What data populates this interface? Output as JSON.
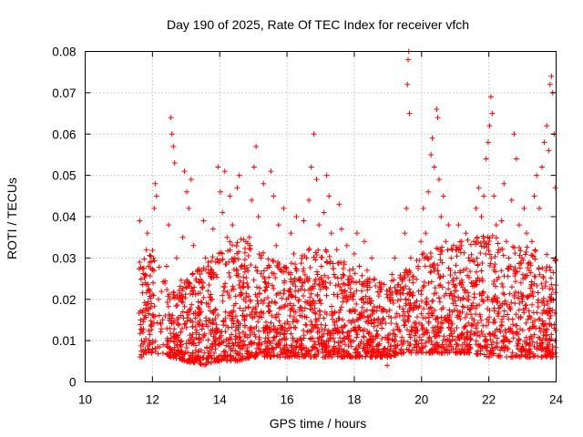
{
  "chart_data": {
    "type": "scatter",
    "title": "Day 190 of 2025, Rate Of TEC Index for receiver vfch",
    "xlabel": "GPS time / hours",
    "ylabel": "ROTI / TECUs",
    "xlim": [
      10,
      24
    ],
    "ylim": [
      0,
      0.08
    ],
    "xticks": [
      10,
      12,
      14,
      16,
      18,
      20,
      22,
      24
    ],
    "xtick_labels": [
      "10",
      "12",
      "14",
      "16",
      "18",
      "20",
      "22",
      "24"
    ],
    "yticks": [
      0,
      0.01,
      0.02,
      0.03,
      0.04,
      0.05,
      0.06,
      0.07,
      0.08
    ],
    "ytick_labels": [
      "0",
      "0.01",
      "0.02",
      "0.03",
      "0.04",
      "0.05",
      "0.06",
      "0.07",
      "0.08"
    ],
    "grid": true,
    "marker": "+",
    "color": "#ff0000",
    "series": [
      {
        "name": "ROTI",
        "points": [
          [
            11.62,
            0.039
          ],
          [
            11.65,
            0.015
          ],
          [
            11.68,
            0.01
          ],
          [
            11.72,
            0.012
          ],
          [
            11.78,
            0.026
          ],
          [
            11.82,
            0.032
          ],
          [
            11.85,
            0.036
          ],
          [
            11.88,
            0.028
          ],
          [
            11.92,
            0.022
          ],
          [
            11.95,
            0.018
          ],
          [
            11.98,
            0.014
          ],
          [
            12.02,
            0.024
          ],
          [
            12.05,
            0.042
          ],
          [
            12.08,
            0.048
          ],
          [
            12.12,
            0.045
          ],
          [
            12.18,
            0.02
          ],
          [
            12.25,
            0.014
          ],
          [
            12.32,
            0.009
          ],
          [
            12.38,
            0.016
          ],
          [
            12.42,
            0.028
          ],
          [
            12.48,
            0.038
          ],
          [
            12.55,
            0.064
          ],
          [
            12.58,
            0.06
          ],
          [
            12.62,
            0.057
          ],
          [
            12.66,
            0.053
          ],
          [
            12.72,
            0.03
          ],
          [
            12.78,
            0.02
          ],
          [
            12.84,
            0.012
          ],
          [
            12.9,
            0.035
          ],
          [
            12.95,
            0.051
          ],
          [
            13.02,
            0.046
          ],
          [
            13.08,
            0.042
          ],
          [
            13.15,
            0.049
          ],
          [
            13.22,
            0.033
          ],
          [
            13.3,
            0.025
          ],
          [
            13.38,
            0.018
          ],
          [
            13.45,
            0.01
          ],
          [
            13.52,
            0.039
          ],
          [
            13.58,
            0.03
          ],
          [
            13.65,
            0.022
          ],
          [
            13.72,
            0.015
          ],
          [
            13.8,
            0.037
          ],
          [
            13.88,
            0.029
          ],
          [
            13.95,
            0.052
          ],
          [
            14.02,
            0.046
          ],
          [
            14.08,
            0.041
          ],
          [
            14.15,
            0.051
          ],
          [
            14.22,
            0.035
          ],
          [
            14.3,
            0.045
          ],
          [
            14.38,
            0.038
          ],
          [
            14.45,
            0.03
          ],
          [
            14.52,
            0.047
          ],
          [
            14.58,
            0.05
          ],
          [
            14.65,
            0.028
          ],
          [
            14.72,
            0.02
          ],
          [
            14.8,
            0.016
          ],
          [
            14.88,
            0.035
          ],
          [
            14.95,
            0.044
          ],
          [
            15.02,
            0.052
          ],
          [
            15.08,
            0.057
          ],
          [
            15.15,
            0.04
          ],
          [
            15.22,
            0.03
          ],
          [
            15.3,
            0.048
          ],
          [
            15.38,
            0.023
          ],
          [
            15.45,
            0.017
          ],
          [
            15.52,
            0.051
          ],
          [
            15.6,
            0.045
          ],
          [
            15.68,
            0.033
          ],
          [
            15.75,
            0.038
          ],
          [
            15.82,
            0.027
          ],
          [
            15.9,
            0.042
          ],
          [
            15.98,
            0.02
          ],
          [
            16.05,
            0.014
          ],
          [
            16.12,
            0.036
          ],
          [
            16.2,
            0.031
          ],
          [
            16.28,
            0.04
          ],
          [
            16.35,
            0.025
          ],
          [
            16.42,
            0.018
          ],
          [
            16.5,
            0.039
          ],
          [
            16.58,
            0.03
          ],
          [
            16.65,
            0.044
          ],
          [
            16.72,
            0.052
          ],
          [
            16.8,
            0.06
          ],
          [
            16.88,
            0.049
          ],
          [
            16.95,
            0.038
          ],
          [
            17.02,
            0.028
          ],
          [
            17.1,
            0.041
          ],
          [
            17.18,
            0.05
          ],
          [
            17.25,
            0.045
          ],
          [
            17.32,
            0.036
          ],
          [
            17.4,
            0.026
          ],
          [
            17.48,
            0.032
          ],
          [
            17.55,
            0.043
          ],
          [
            17.62,
            0.037
          ],
          [
            17.7,
            0.029
          ],
          [
            17.78,
            0.033
          ],
          [
            17.85,
            0.024
          ],
          [
            17.92,
            0.017
          ],
          [
            18.0,
            0.031
          ],
          [
            18.08,
            0.036
          ],
          [
            18.15,
            0.028
          ],
          [
            18.22,
            0.022
          ],
          [
            18.3,
            0.034
          ],
          [
            18.38,
            0.027
          ],
          [
            18.45,
            0.02
          ],
          [
            18.52,
            0.03
          ],
          [
            18.6,
            0.025
          ],
          [
            18.68,
            0.018
          ],
          [
            18.75,
            0.024
          ],
          [
            18.82,
            0.013
          ],
          [
            18.9,
            0.008
          ],
          [
            18.98,
            0.004
          ],
          [
            19.05,
            0.02
          ],
          [
            19.12,
            0.026
          ],
          [
            19.2,
            0.03
          ],
          [
            19.28,
            0.022
          ],
          [
            19.35,
            0.016
          ],
          [
            19.42,
            0.025
          ],
          [
            19.5,
            0.036
          ],
          [
            19.55,
            0.042
          ],
          [
            19.58,
            0.072
          ],
          [
            19.6,
            0.078
          ],
          [
            19.62,
            0.08
          ],
          [
            19.64,
            0.065
          ],
          [
            19.68,
            0.03
          ],
          [
            19.75,
            0.024
          ],
          [
            19.82,
            0.018
          ],
          [
            19.9,
            0.028
          ],
          [
            19.98,
            0.034
          ],
          [
            20.05,
            0.042
          ],
          [
            20.12,
            0.036
          ],
          [
            20.2,
            0.046
          ],
          [
            20.28,
            0.055
          ],
          [
            20.32,
            0.059
          ],
          [
            20.38,
            0.052
          ],
          [
            20.45,
            0.066
          ],
          [
            20.48,
            0.064
          ],
          [
            20.52,
            0.049
          ],
          [
            20.58,
            0.04
          ],
          [
            20.65,
            0.045
          ],
          [
            20.72,
            0.034
          ],
          [
            20.8,
            0.038
          ],
          [
            20.88,
            0.03
          ],
          [
            20.95,
            0.025
          ],
          [
            21.02,
            0.032
          ],
          [
            21.1,
            0.038
          ],
          [
            21.18,
            0.033
          ],
          [
            21.25,
            0.027
          ],
          [
            21.32,
            0.036
          ],
          [
            21.4,
            0.03
          ],
          [
            21.48,
            0.024
          ],
          [
            21.55,
            0.034
          ],
          [
            21.62,
            0.042
          ],
          [
            21.7,
            0.047
          ],
          [
            21.78,
            0.04
          ],
          [
            21.85,
            0.045
          ],
          [
            21.92,
            0.054
          ],
          [
            21.98,
            0.058
          ],
          [
            22.02,
            0.062
          ],
          [
            22.06,
            0.069
          ],
          [
            22.1,
            0.065
          ],
          [
            22.15,
            0.045
          ],
          [
            22.22,
            0.038
          ],
          [
            22.3,
            0.032
          ],
          [
            22.38,
            0.039
          ],
          [
            22.45,
            0.048
          ],
          [
            22.52,
            0.034
          ],
          [
            22.6,
            0.028
          ],
          [
            22.68,
            0.044
          ],
          [
            22.75,
            0.06
          ],
          [
            22.82,
            0.054
          ],
          [
            22.9,
            0.038
          ],
          [
            22.98,
            0.03
          ],
          [
            23.05,
            0.042
          ],
          [
            23.12,
            0.036
          ],
          [
            23.2,
            0.027
          ],
          [
            23.28,
            0.034
          ],
          [
            23.35,
            0.045
          ],
          [
            23.42,
            0.05
          ],
          [
            23.5,
            0.042
          ],
          [
            23.58,
            0.052
          ],
          [
            23.65,
            0.058
          ],
          [
            23.72,
            0.062
          ],
          [
            23.78,
            0.056
          ],
          [
            23.82,
            0.072
          ],
          [
            23.86,
            0.074
          ],
          [
            23.9,
            0.07
          ],
          [
            23.94,
            0.06
          ],
          [
            23.98,
            0.047
          ]
        ],
        "dense_band": [
          {
            "x": 11.75,
            "ymin": 0.007,
            "ymax": 0.03
          },
          {
            "x": 12.0,
            "ymin": 0.007,
            "ymax": 0.032
          },
          {
            "x": 12.5,
            "ymin": 0.006,
            "ymax": 0.022
          },
          {
            "x": 13.0,
            "ymin": 0.005,
            "ymax": 0.026
          },
          {
            "x": 13.5,
            "ymin": 0.004,
            "ymax": 0.028
          },
          {
            "x": 14.0,
            "ymin": 0.005,
            "ymax": 0.032
          },
          {
            "x": 14.5,
            "ymin": 0.005,
            "ymax": 0.036
          },
          {
            "x": 15.0,
            "ymin": 0.006,
            "ymax": 0.033
          },
          {
            "x": 15.5,
            "ymin": 0.006,
            "ymax": 0.03
          },
          {
            "x": 16.0,
            "ymin": 0.006,
            "ymax": 0.028
          },
          {
            "x": 16.5,
            "ymin": 0.006,
            "ymax": 0.032
          },
          {
            "x": 17.0,
            "ymin": 0.006,
            "ymax": 0.033
          },
          {
            "x": 17.5,
            "ymin": 0.006,
            "ymax": 0.03
          },
          {
            "x": 18.0,
            "ymin": 0.006,
            "ymax": 0.028
          },
          {
            "x": 18.5,
            "ymin": 0.006,
            "ymax": 0.025
          },
          {
            "x": 19.0,
            "ymin": 0.006,
            "ymax": 0.024
          },
          {
            "x": 19.5,
            "ymin": 0.007,
            "ymax": 0.027
          },
          {
            "x": 20.0,
            "ymin": 0.007,
            "ymax": 0.031
          },
          {
            "x": 20.5,
            "ymin": 0.007,
            "ymax": 0.033
          },
          {
            "x": 21.0,
            "ymin": 0.007,
            "ymax": 0.034
          },
          {
            "x": 21.5,
            "ymin": 0.007,
            "ymax": 0.035
          },
          {
            "x": 22.0,
            "ymin": 0.006,
            "ymax": 0.036
          },
          {
            "x": 22.5,
            "ymin": 0.006,
            "ymax": 0.034
          },
          {
            "x": 23.0,
            "ymin": 0.006,
            "ymax": 0.033
          },
          {
            "x": 23.5,
            "ymin": 0.006,
            "ymax": 0.032
          },
          {
            "x": 24.0,
            "ymin": 0.006,
            "ymax": 0.03
          }
        ],
        "dense_count": 2800,
        "x_range": [
          11.6,
          24.0
        ]
      }
    ]
  }
}
